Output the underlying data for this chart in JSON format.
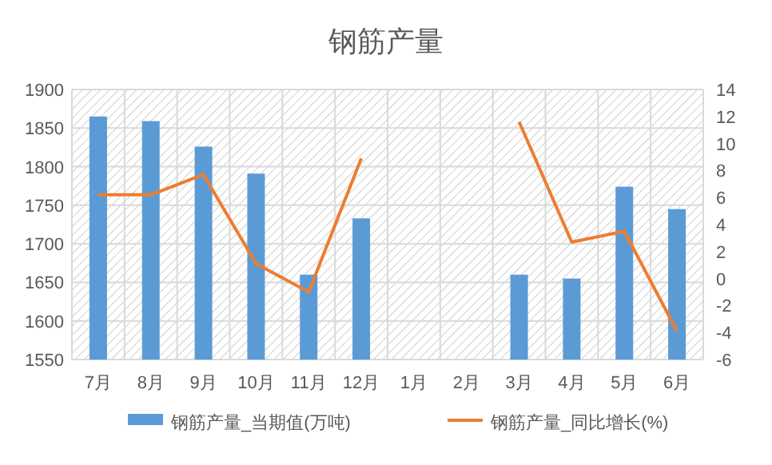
{
  "chart_data": {
    "type": "bar",
    "title": "钢筋产量",
    "categories": [
      "7月",
      "8月",
      "9月",
      "10月",
      "11月",
      "12月",
      "1月",
      "2月",
      "3月",
      "4月",
      "5月",
      "6月"
    ],
    "series": [
      {
        "name": "钢筋产量_当期值(万吨)",
        "color": "#5b9bd5",
        "values": [
          1865,
          1859,
          1826,
          1791,
          1660,
          1733,
          null,
          null,
          1660,
          1655,
          1774,
          1745
        ]
      },
      {
        "name": "钢筋产量_同比增长(%)",
        "type": "line",
        "axis": "y2",
        "color": "#ed7d31",
        "values": [
          6.2,
          6.2,
          7.7,
          1.1,
          -1.0,
          8.9,
          null,
          null,
          11.6,
          2.7,
          3.5,
          -3.9
        ]
      }
    ],
    "ylim": [
      1550,
      1900
    ],
    "yticks": [
      1550,
      1600,
      1650,
      1700,
      1750,
      1800,
      1850,
      1900
    ],
    "y2lim": [
      -6,
      14
    ],
    "y2ticks": [
      -6,
      -4,
      -2,
      0,
      2,
      4,
      6,
      8,
      10,
      12,
      14
    ],
    "grid": true,
    "legend": "bottom"
  }
}
